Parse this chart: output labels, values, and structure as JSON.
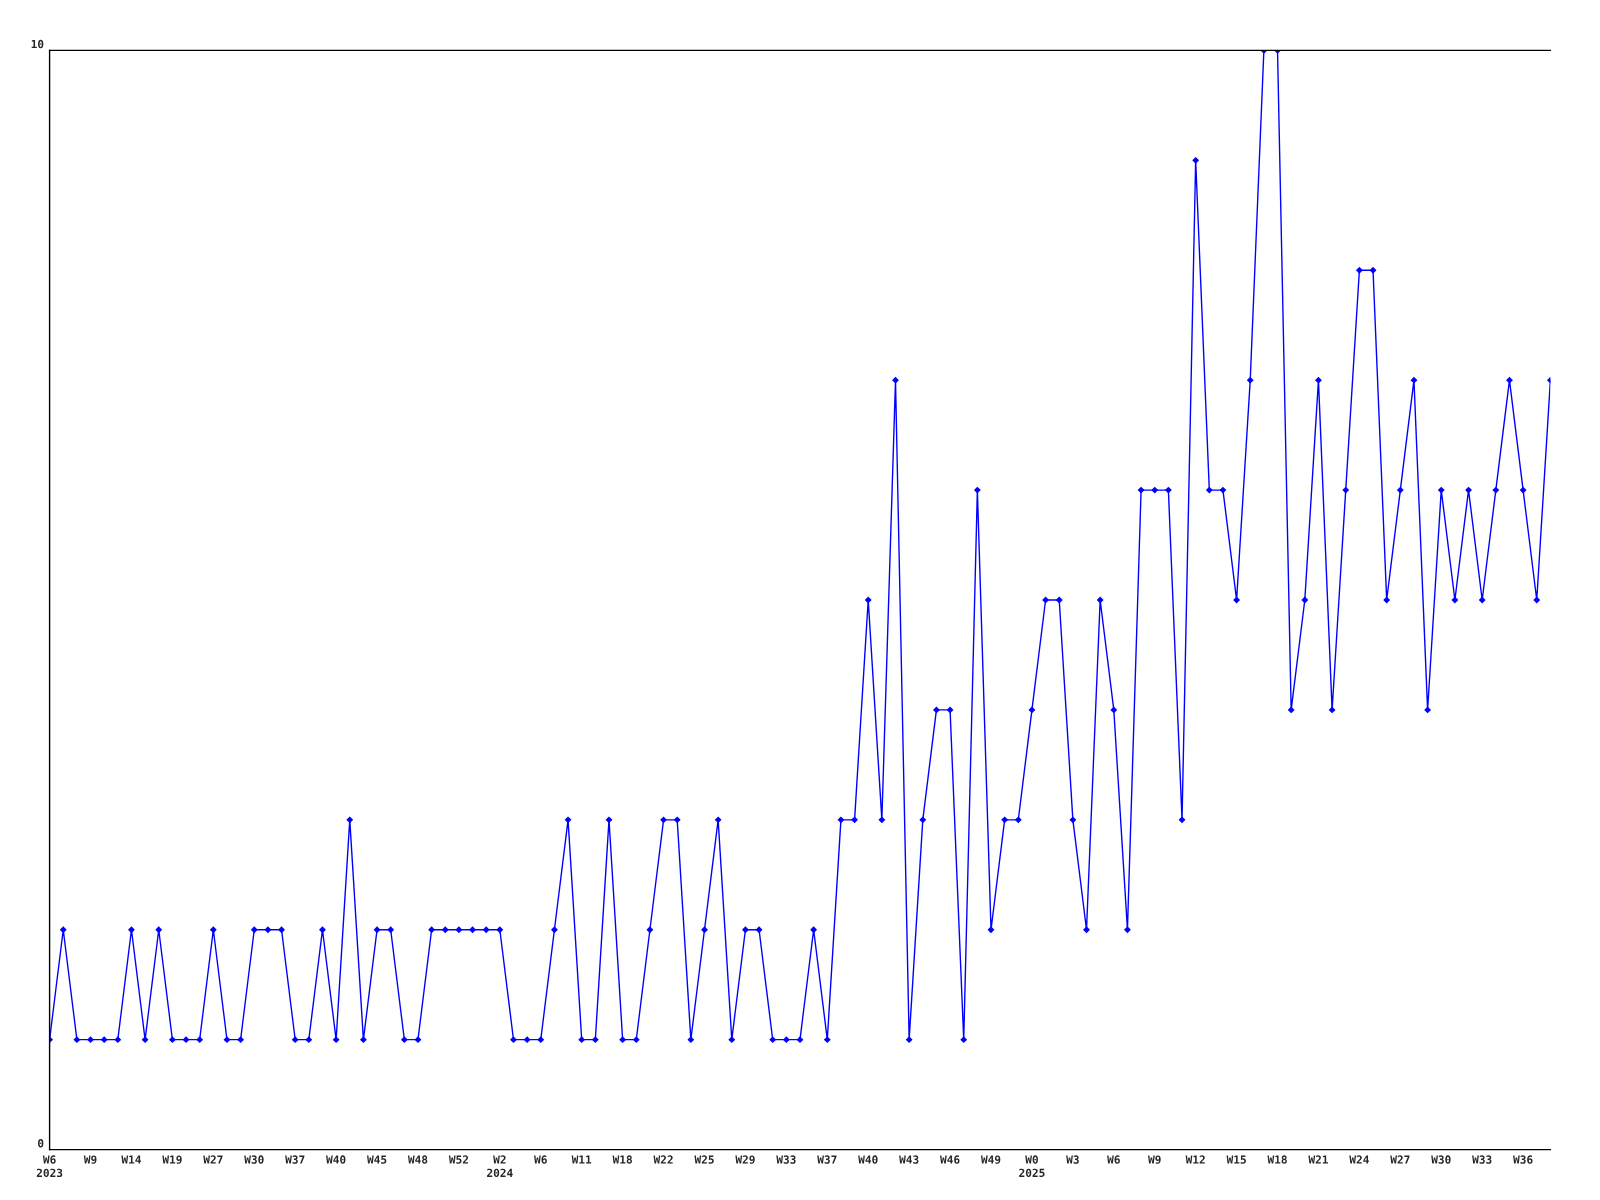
{
  "chart_data": {
    "type": "line",
    "categories": [
      "W6\n2023",
      null,
      null,
      "W9",
      null,
      null,
      "W14",
      null,
      null,
      "W19",
      null,
      null,
      "W27",
      null,
      null,
      "W30",
      null,
      null,
      "W37",
      null,
      null,
      "W40",
      null,
      null,
      "W45",
      null,
      null,
      "W48",
      null,
      null,
      "W52",
      null,
      null,
      "W2\n2024",
      null,
      null,
      "W6",
      null,
      null,
      "W11",
      null,
      null,
      "W18",
      null,
      null,
      "W22",
      null,
      null,
      "W25",
      null,
      null,
      "W29",
      null,
      null,
      "W33",
      null,
      null,
      "W37",
      null,
      null,
      "W40",
      null,
      null,
      "W43",
      null,
      null,
      "W46",
      null,
      null,
      "W49",
      null,
      null,
      "W0\n2025",
      null,
      null,
      "W3",
      null,
      null,
      "W6",
      null,
      null,
      "W9",
      null,
      null,
      "W12",
      null,
      null,
      "W15",
      null,
      null,
      "W18",
      null,
      null,
      "W21",
      null,
      null,
      "W24",
      null,
      null,
      "W27",
      null,
      null,
      "W30",
      null,
      null,
      "W33",
      null,
      null,
      "W36",
      null,
      null
    ],
    "series": [
      {
        "color": "#0000ff",
        "values": [
          1,
          2,
          1,
          1,
          1,
          1,
          2,
          1,
          2,
          1,
          1,
          1,
          2,
          1,
          1,
          2,
          2,
          2,
          1,
          1,
          2,
          1,
          3,
          1,
          2,
          2,
          1,
          1,
          2,
          2,
          2,
          2,
          2,
          2,
          1,
          1,
          1,
          2,
          3,
          1,
          1,
          3,
          1,
          1,
          2,
          3,
          3,
          1,
          2,
          3,
          1,
          2,
          2,
          1,
          1,
          1,
          2,
          1,
          3,
          3,
          5,
          3,
          7,
          1,
          3,
          4,
          4,
          1,
          6,
          2,
          3,
          3,
          4,
          5,
          5,
          3,
          2,
          5,
          4,
          2,
          6,
          6,
          6,
          3,
          9,
          6,
          6,
          5,
          7,
          10,
          10,
          4,
          5,
          7,
          4,
          6,
          8,
          8,
          5,
          6,
          7,
          4,
          6,
          5,
          6,
          5,
          6,
          7,
          6,
          5,
          7
        ]
      }
    ],
    "ylim": [
      0,
      10
    ],
    "yticks": [
      0,
      10
    ],
    "marker": "diamond",
    "line_style": "solid",
    "legend": false
  }
}
